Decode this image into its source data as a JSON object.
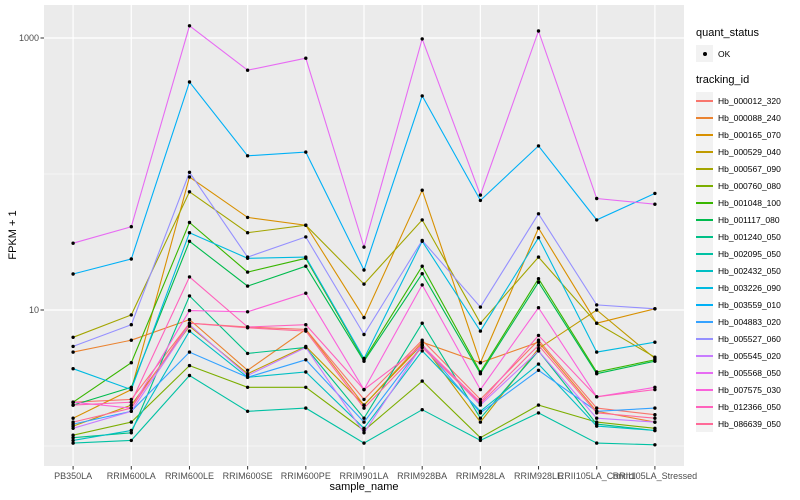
{
  "figure": {
    "colors": {
      "panel_bg": "#EBEBEB",
      "grid": "#FFFFFF",
      "axis_text": "#4D4D4D",
      "tick_mark": "#333333",
      "legend_key_bg": "#F2F2F2",
      "point": "#000000"
    },
    "legend": {
      "quant_status": {
        "title": "quant_status",
        "items": [
          {
            "label": "OK",
            "marker": "point",
            "color": "#000000"
          }
        ]
      },
      "tracking_id": {
        "title": "tracking_id"
      }
    }
  },
  "chart_data": {
    "type": "line",
    "title": "",
    "xlabel": "sample_name",
    "ylabel": "FPKM + 1",
    "y_scale": "log10",
    "ylim": [
      0.7,
      1750
    ],
    "y_major_ticks": [
      {
        "label": "1000",
        "value": 1000
      },
      {
        "label": "10",
        "value": 10
      }
    ],
    "y_minor_gridlines": [
      100,
      1
    ],
    "grid": true,
    "legend_position": "right",
    "point_marker": {
      "shape": "circle",
      "color": "#000000",
      "legend_label": "OK"
    },
    "categories": [
      "PB350LA",
      "RRIM600LA",
      "RRIM600LE",
      "RRIM600SE",
      "RRIM600PE",
      "RRIM901LA",
      "RRIM928BA",
      "RRIM928LA",
      "RRIM928LE",
      "RRII105LA_Control",
      "RRII105LA_Stressed"
    ],
    "series": [
      {
        "name": "Hb_000012_320",
        "color": "#F8766D",
        "values": [
          2.1,
          2.2,
          8.0,
          7.5,
          7.2,
          2.2,
          6.0,
          2.2,
          6.0,
          1.9,
          1.7
        ]
      },
      {
        "name": "Hb_000088_240",
        "color": "#EA8331",
        "values": [
          4.9,
          6.0,
          8.5,
          3.6,
          7.2,
          2.0,
          5.8,
          4.1,
          5.8,
          1.8,
          1.5
        ]
      },
      {
        "name": "Hb_000165_070",
        "color": "#D89000",
        "values": [
          1.6,
          2.6,
          95,
          48,
          42,
          8.8,
          76,
          4.1,
          40,
          8.0,
          10.2
        ]
      },
      {
        "name": "Hb_000529_040",
        "color": "#C09B00",
        "values": [
          1.4,
          2.0,
          7.6,
          3.4,
          5.4,
          2.0,
          5.6,
          1.5,
          5.2,
          10.0,
          4.4
        ]
      },
      {
        "name": "Hb_000567_090",
        "color": "#A3A500",
        "values": [
          6.3,
          9.2,
          74,
          37,
          42,
          15.5,
          46,
          8.0,
          24.5,
          8.0,
          4.5
        ]
      },
      {
        "name": "Hb_000760_080",
        "color": "#7CAE00",
        "values": [
          1.2,
          1.5,
          3.9,
          2.7,
          2.7,
          1.3,
          3.0,
          1.15,
          2.0,
          1.5,
          1.35
        ]
      },
      {
        "name": "Hb_001048_100",
        "color": "#39B600",
        "values": [
          2.1,
          4.1,
          44,
          19,
          24,
          4.3,
          21,
          3.5,
          17,
          3.5,
          4.3
        ]
      },
      {
        "name": "Hb_001117_080",
        "color": "#00BB4E",
        "values": [
          2.0,
          2.7,
          32,
          15,
          21,
          4.2,
          18.5,
          3.4,
          16,
          3.4,
          4.2
        ]
      },
      {
        "name": "Hb_001240_050",
        "color": "#00C087",
        "values": [
          1.15,
          1.25,
          12.7,
          4.8,
          5.3,
          1.6,
          8.0,
          1.6,
          5.0,
          1.45,
          1.3
        ]
      },
      {
        "name": "Hb_002095_050",
        "color": "#00C1A3",
        "values": [
          1.05,
          1.1,
          3.3,
          1.8,
          1.9,
          1.05,
          1.85,
          1.1,
          1.75,
          1.05,
          1.02
        ]
      },
      {
        "name": "Hb_002432_050",
        "color": "#00BFC4",
        "values": [
          1.1,
          1.3,
          7.0,
          3.2,
          3.5,
          1.35,
          5.0,
          1.8,
          4.0,
          1.4,
          1.3
        ]
      },
      {
        "name": "Hb_003226_090",
        "color": "#00BAE0",
        "values": [
          3.7,
          2.6,
          37,
          24,
          24.5,
          4.4,
          32,
          7.0,
          34,
          4.9,
          5.8
        ]
      },
      {
        "name": "Hb_003559_010",
        "color": "#00B0F6",
        "values": [
          18.4,
          23.7,
          475,
          136,
          145,
          19.7,
          375,
          64,
          161,
          46,
          72
        ]
      },
      {
        "name": "Hb_004883_020",
        "color": "#35A2FF",
        "values": [
          1.45,
          1.8,
          4.9,
          3.2,
          4.3,
          1.5,
          5.5,
          1.75,
          3.6,
          1.8,
          1.9
        ]
      },
      {
        "name": "Hb_005527_060",
        "color": "#9590FF",
        "values": [
          5.4,
          7.8,
          103,
          24.5,
          34.5,
          6.6,
          32.5,
          10.5,
          51,
          10.9,
          10.2
        ]
      },
      {
        "name": "Hb_005545_020",
        "color": "#C77CFF",
        "values": [
          1.35,
          1.8,
          7.8,
          3.3,
          5.3,
          1.25,
          5.5,
          2.0,
          5.0,
          1.6,
          1.5
        ]
      },
      {
        "name": "Hb_005568_050",
        "color": "#E76BF3",
        "values": [
          31,
          41,
          1230,
          580,
          710,
          29,
          985,
          70,
          1125,
          66,
          60
        ]
      },
      {
        "name": "Hb_007575_030",
        "color": "#FA62DB",
        "values": [
          2.1,
          1.9,
          9.9,
          9.7,
          13.3,
          2.6,
          15.3,
          2.6,
          10.4,
          2.3,
          2.7
        ]
      },
      {
        "name": "Hb_012366_050",
        "color": "#FF62BC",
        "values": [
          2.0,
          2.1,
          17.5,
          7.5,
          7.8,
          2.6,
          5.5,
          2.1,
          6.5,
          2.3,
          2.6
        ]
      },
      {
        "name": "Hb_086639_050",
        "color": "#FF6A98",
        "values": [
          1.5,
          1.9,
          8.0,
          7.4,
          7.0,
          1.9,
          5.3,
          2.05,
          5.5,
          1.75,
          1.6
        ]
      }
    ]
  }
}
